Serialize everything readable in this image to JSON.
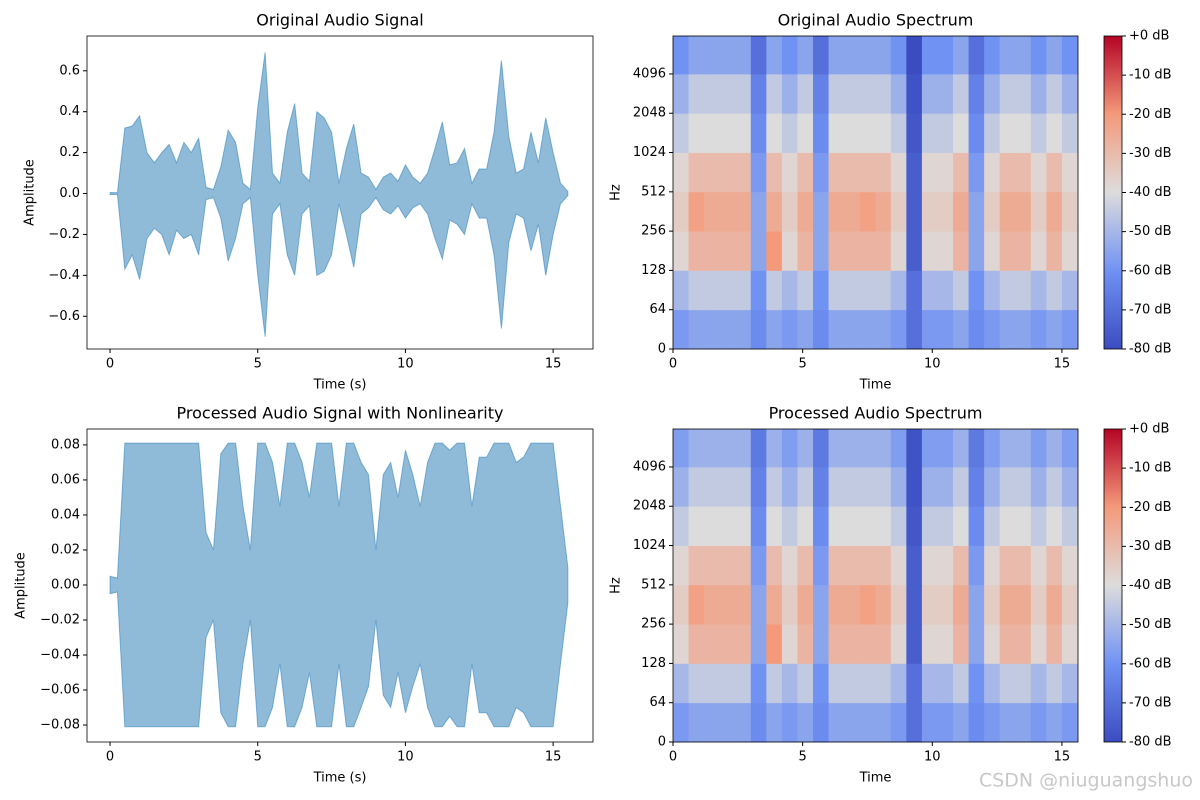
{
  "chart_data": [
    {
      "type": "area",
      "title": "Original Audio Signal",
      "xlabel": "Time (s)",
      "ylabel": "Amplitude",
      "color": "#1f77b4",
      "opacity": 0.5,
      "x": [
        0,
        0.25,
        0.5,
        0.75,
        1,
        1.25,
        1.5,
        1.75,
        2,
        2.25,
        2.5,
        2.75,
        3,
        3.25,
        3.5,
        3.75,
        4,
        4.25,
        4.5,
        4.75,
        5,
        5.25,
        5.5,
        5.75,
        6,
        6.25,
        6.5,
        6.75,
        7,
        7.25,
        7.5,
        7.75,
        8,
        8.25,
        8.5,
        8.75,
        9,
        9.25,
        9.5,
        9.75,
        10,
        10.25,
        10.5,
        10.75,
        11,
        11.25,
        11.5,
        11.75,
        12,
        12.25,
        12.5,
        12.75,
        13,
        13.25,
        13.5,
        13.75,
        14,
        14.25,
        14.5,
        14.75,
        15,
        15.25,
        15.5
      ],
      "upper": [
        0.005,
        0.004,
        0.32,
        0.33,
        0.38,
        0.2,
        0.15,
        0.2,
        0.24,
        0.15,
        0.25,
        0.2,
        0.27,
        0.03,
        0.02,
        0.13,
        0.31,
        0.25,
        0.05,
        0.02,
        0.42,
        0.69,
        0.1,
        0.05,
        0.3,
        0.44,
        0.1,
        0.06,
        0.4,
        0.37,
        0.3,
        0.05,
        0.22,
        0.34,
        0.1,
        0.08,
        0.02,
        0.08,
        0.1,
        0.06,
        0.14,
        0.08,
        0.05,
        0.1,
        0.22,
        0.35,
        0.14,
        0.15,
        0.22,
        0.05,
        0.12,
        0.12,
        0.3,
        0.65,
        0.28,
        0.1,
        0.12,
        0.3,
        0.15,
        0.37,
        0.2,
        0.05,
        0.01
      ],
      "lower": [
        -0.005,
        -0.004,
        -0.37,
        -0.3,
        -0.42,
        -0.22,
        -0.17,
        -0.2,
        -0.3,
        -0.18,
        -0.22,
        -0.2,
        -0.3,
        -0.03,
        -0.02,
        -0.12,
        -0.33,
        -0.22,
        -0.05,
        -0.02,
        -0.4,
        -0.7,
        -0.1,
        -0.05,
        -0.3,
        -0.4,
        -0.1,
        -0.06,
        -0.4,
        -0.38,
        -0.3,
        -0.05,
        -0.2,
        -0.36,
        -0.1,
        -0.07,
        -0.02,
        -0.08,
        -0.1,
        -0.06,
        -0.12,
        -0.07,
        -0.05,
        -0.1,
        -0.22,
        -0.32,
        -0.13,
        -0.15,
        -0.2,
        -0.05,
        -0.12,
        -0.12,
        -0.3,
        -0.66,
        -0.24,
        -0.1,
        -0.12,
        -0.28,
        -0.15,
        -0.4,
        -0.2,
        -0.05,
        -0.01
      ],
      "xlim": [
        -0.78,
        16.35
      ],
      "xticks": [
        0,
        5,
        10,
        15
      ],
      "ylim": [
        -0.76,
        0.77
      ],
      "yticks": [
        {
          "value": -0.6,
          "label": "−0.6"
        },
        {
          "value": -0.4,
          "label": "−0.4"
        },
        {
          "value": -0.2,
          "label": "−0.2"
        },
        {
          "value": 0,
          "label": "0.0"
        },
        0.2,
        0.4,
        0.6
      ]
    },
    {
      "type": "heatmap",
      "title": "Original Audio Spectrum",
      "xlabel": "Time",
      "ylabel": "Hz",
      "yscale": "symlog",
      "linthresh": 64,
      "colormap": "coolwarm",
      "x_edges": [
        0,
        0.6,
        1.2,
        1.8,
        2.4,
        3,
        3.6,
        4.2,
        4.8,
        5.4,
        6,
        6.6,
        7.2,
        7.8,
        8.4,
        9,
        9.6,
        10.2,
        10.8,
        11.4,
        12,
        12.6,
        13.2,
        13.8,
        14.4,
        15,
        15.6
      ],
      "y_edges": [
        0,
        64,
        128,
        256,
        512,
        1024,
        2048,
        4096,
        8000
      ],
      "values": [
        [
          -58,
          -55,
          -55,
          -55,
          -55,
          -62,
          -55,
          -58,
          -55,
          -62,
          -55,
          -55,
          -55,
          -55,
          -58,
          -70,
          -58,
          -58,
          -55,
          -62,
          -58,
          -55,
          -55,
          -58,
          -55,
          -58
        ],
        [
          -50,
          -45,
          -45,
          -45,
          -45,
          -60,
          -45,
          -50,
          -45,
          -60,
          -45,
          -45,
          -45,
          -45,
          -50,
          -70,
          -50,
          -50,
          -45,
          -60,
          -50,
          -45,
          -45,
          -50,
          -45,
          -50
        ],
        [
          -38,
          -28,
          -28,
          -28,
          -28,
          -55,
          -20,
          -38,
          -28,
          -55,
          -28,
          -28,
          -28,
          -28,
          -38,
          -75,
          -38,
          -38,
          -28,
          -55,
          -38,
          -28,
          -28,
          -38,
          -28,
          -38
        ],
        [
          -35,
          -22,
          -25,
          -25,
          -25,
          -55,
          -25,
          -35,
          -25,
          -55,
          -25,
          -25,
          -22,
          -25,
          -35,
          -75,
          -35,
          -35,
          -25,
          -55,
          -35,
          -25,
          -25,
          -35,
          -25,
          -35
        ],
        [
          -38,
          -30,
          -30,
          -30,
          -30,
          -58,
          -30,
          -38,
          -30,
          -58,
          -30,
          -30,
          -30,
          -30,
          -38,
          -75,
          -38,
          -38,
          -30,
          -58,
          -38,
          -30,
          -30,
          -38,
          -30,
          -38
        ],
        [
          -45,
          -40,
          -40,
          -40,
          -40,
          -62,
          -40,
          -45,
          -40,
          -62,
          -40,
          -40,
          -40,
          -40,
          -45,
          -77,
          -45,
          -45,
          -40,
          -62,
          -45,
          -40,
          -40,
          -45,
          -40,
          -45
        ],
        [
          -52,
          -45,
          -45,
          -45,
          -45,
          -65,
          -45,
          -52,
          -45,
          -65,
          -45,
          -45,
          -45,
          -45,
          -52,
          -78,
          -52,
          -52,
          -45,
          -65,
          -52,
          -45,
          -45,
          -52,
          -45,
          -52
        ],
        [
          -60,
          -55,
          -55,
          -55,
          -55,
          -70,
          -55,
          -60,
          -55,
          -70,
          -55,
          -55,
          -55,
          -55,
          -60,
          -80,
          -60,
          -60,
          -55,
          -70,
          -60,
          -55,
          -55,
          -60,
          -55,
          -60
        ]
      ],
      "xlim": [
        0,
        15.62
      ],
      "xticks": [
        0,
        5,
        10,
        15
      ],
      "ylim": [
        0,
        8000
      ],
      "yticks": [
        0,
        64,
        128,
        256,
        512,
        1024,
        2048,
        4096
      ],
      "clim": [
        -80,
        0
      ],
      "cticks": [
        {
          "value": 0,
          "label": "+0 dB"
        },
        {
          "value": -10,
          "label": "-10 dB"
        },
        {
          "value": -20,
          "label": "-20 dB"
        },
        {
          "value": -30,
          "label": "-30 dB"
        },
        {
          "value": -40,
          "label": "-40 dB"
        },
        {
          "value": -50,
          "label": "-50 dB"
        },
        {
          "value": -60,
          "label": "-60 dB"
        },
        {
          "value": -70,
          "label": "-70 dB"
        },
        {
          "value": -80,
          "label": "-80 dB"
        }
      ]
    },
    {
      "type": "area",
      "title": "Processed Audio Signal with Nonlinearity",
      "xlabel": "Time (s)",
      "ylabel": "Amplitude",
      "color": "#1f77b4",
      "opacity": 0.5,
      "x": [
        0,
        0.25,
        0.5,
        0.75,
        1,
        1.25,
        1.5,
        1.75,
        2,
        2.25,
        2.5,
        2.75,
        3,
        3.25,
        3.5,
        3.75,
        4,
        4.25,
        4.5,
        4.75,
        5,
        5.25,
        5.5,
        5.75,
        6,
        6.25,
        6.5,
        6.75,
        7,
        7.25,
        7.5,
        7.75,
        8,
        8.25,
        8.5,
        8.75,
        9,
        9.25,
        9.5,
        9.75,
        10,
        10.25,
        10.5,
        10.75,
        11,
        11.25,
        11.5,
        11.75,
        12,
        12.25,
        12.5,
        12.75,
        13,
        13.25,
        13.5,
        13.75,
        14,
        14.25,
        14.5,
        14.75,
        15,
        15.25,
        15.5
      ],
      "upper": [
        0.005,
        0.004,
        0.081,
        0.081,
        0.081,
        0.081,
        0.081,
        0.081,
        0.081,
        0.081,
        0.081,
        0.081,
        0.081,
        0.03,
        0.02,
        0.075,
        0.081,
        0.081,
        0.045,
        0.02,
        0.081,
        0.081,
        0.07,
        0.045,
        0.081,
        0.081,
        0.07,
        0.05,
        0.081,
        0.081,
        0.081,
        0.045,
        0.081,
        0.081,
        0.07,
        0.063,
        0.02,
        0.063,
        0.07,
        0.05,
        0.077,
        0.063,
        0.045,
        0.07,
        0.081,
        0.081,
        0.077,
        0.081,
        0.081,
        0.045,
        0.073,
        0.073,
        0.081,
        0.081,
        0.081,
        0.07,
        0.073,
        0.081,
        0.081,
        0.081,
        0.081,
        0.045,
        0.01
      ],
      "lower": [
        -0.005,
        -0.004,
        -0.081,
        -0.081,
        -0.081,
        -0.081,
        -0.081,
        -0.081,
        -0.081,
        -0.081,
        -0.081,
        -0.081,
        -0.081,
        -0.03,
        -0.02,
        -0.073,
        -0.081,
        -0.081,
        -0.045,
        -0.02,
        -0.081,
        -0.081,
        -0.07,
        -0.045,
        -0.081,
        -0.081,
        -0.07,
        -0.05,
        -0.081,
        -0.081,
        -0.081,
        -0.045,
        -0.081,
        -0.081,
        -0.07,
        -0.058,
        -0.02,
        -0.063,
        -0.07,
        -0.05,
        -0.073,
        -0.058,
        -0.045,
        -0.07,
        -0.081,
        -0.081,
        -0.075,
        -0.081,
        -0.081,
        -0.045,
        -0.073,
        -0.073,
        -0.081,
        -0.081,
        -0.081,
        -0.07,
        -0.073,
        -0.081,
        -0.081,
        -0.081,
        -0.081,
        -0.045,
        -0.01
      ],
      "xlim": [
        -0.78,
        16.35
      ],
      "xticks": [
        0,
        5,
        10,
        15
      ],
      "ylim": [
        -0.0897,
        0.0891
      ],
      "yticks": [
        {
          "value": -0.08,
          "label": "−0.08"
        },
        {
          "value": -0.06,
          "label": "−0.06"
        },
        {
          "value": -0.04,
          "label": "−0.04"
        },
        {
          "value": -0.02,
          "label": "−0.02"
        },
        {
          "value": 0,
          "label": "0.00"
        },
        0.02,
        0.04,
        0.06,
        0.08
      ]
    },
    {
      "type": "heatmap",
      "title": "Processed Audio Spectrum",
      "xlabel": "Time",
      "ylabel": "Hz",
      "yscale": "symlog",
      "linthresh": 64,
      "colormap": "coolwarm",
      "x_edges": [
        0,
        0.6,
        1.2,
        1.8,
        2.4,
        3,
        3.6,
        4.2,
        4.8,
        5.4,
        6,
        6.6,
        7.2,
        7.8,
        8.4,
        9,
        9.6,
        10.2,
        10.8,
        11.4,
        12,
        12.6,
        13.2,
        13.8,
        14.4,
        15,
        15.6
      ],
      "y_edges": [
        0,
        64,
        128,
        256,
        512,
        1024,
        2048,
        4096,
        8000
      ],
      "values": [
        [
          -58,
          -55,
          -55,
          -55,
          -55,
          -62,
          -55,
          -58,
          -55,
          -62,
          -55,
          -55,
          -55,
          -55,
          -58,
          -70,
          -58,
          -58,
          -55,
          -62,
          -58,
          -55,
          -55,
          -58,
          -55,
          -58
        ],
        [
          -50,
          -45,
          -45,
          -45,
          -45,
          -60,
          -45,
          -50,
          -45,
          -60,
          -45,
          -45,
          -45,
          -45,
          -50,
          -70,
          -50,
          -50,
          -45,
          -60,
          -50,
          -45,
          -45,
          -50,
          -45,
          -50
        ],
        [
          -38,
          -28,
          -28,
          -28,
          -28,
          -55,
          -20,
          -38,
          -28,
          -55,
          -28,
          -28,
          -28,
          -28,
          -38,
          -75,
          -38,
          -38,
          -28,
          -55,
          -38,
          -28,
          -28,
          -38,
          -28,
          -38
        ],
        [
          -35,
          -22,
          -25,
          -25,
          -25,
          -55,
          -25,
          -35,
          -25,
          -55,
          -25,
          -25,
          -22,
          -25,
          -35,
          -75,
          -35,
          -35,
          -25,
          -55,
          -35,
          -25,
          -25,
          -35,
          -25,
          -35
        ],
        [
          -38,
          -30,
          -30,
          -30,
          -30,
          -58,
          -30,
          -38,
          -30,
          -58,
          -30,
          -30,
          -30,
          -30,
          -38,
          -75,
          -38,
          -38,
          -30,
          -58,
          -38,
          -30,
          -30,
          -38,
          -30,
          -38
        ],
        [
          -45,
          -40,
          -40,
          -40,
          -40,
          -62,
          -40,
          -45,
          -40,
          -62,
          -40,
          -40,
          -40,
          -40,
          -45,
          -77,
          -45,
          -45,
          -40,
          -62,
          -45,
          -40,
          -40,
          -45,
          -40,
          -45
        ],
        [
          -52,
          -45,
          -45,
          -45,
          -45,
          -65,
          -45,
          -52,
          -45,
          -65,
          -45,
          -45,
          -45,
          -45,
          -52,
          -78,
          -52,
          -52,
          -45,
          -65,
          -52,
          -45,
          -45,
          -52,
          -45,
          -52
        ],
        [
          -57,
          -52,
          -52,
          -52,
          -52,
          -67,
          -52,
          -57,
          -52,
          -67,
          -52,
          -52,
          -52,
          -52,
          -57,
          -78,
          -57,
          -57,
          -52,
          -67,
          -57,
          -52,
          -52,
          -57,
          -52,
          -57
        ]
      ],
      "xlim": [
        0,
        15.62
      ],
      "xticks": [
        0,
        5,
        10,
        15
      ],
      "ylim": [
        0,
        8000
      ],
      "yticks": [
        0,
        64,
        128,
        256,
        512,
        1024,
        2048,
        4096
      ],
      "clim": [
        -80,
        0
      ],
      "cticks": [
        {
          "value": 0,
          "label": "+0 dB"
        },
        {
          "value": -10,
          "label": "-10 dB"
        },
        {
          "value": -20,
          "label": "-20 dB"
        },
        {
          "value": -30,
          "label": "-30 dB"
        },
        {
          "value": -40,
          "label": "-40 dB"
        },
        {
          "value": -50,
          "label": "-50 dB"
        },
        {
          "value": -60,
          "label": "-60 dB"
        },
        {
          "value": -70,
          "label": "-70 dB"
        },
        {
          "value": -80,
          "label": "-80 dB"
        }
      ]
    }
  ],
  "watermark": "CSDN @niuguangshuo"
}
